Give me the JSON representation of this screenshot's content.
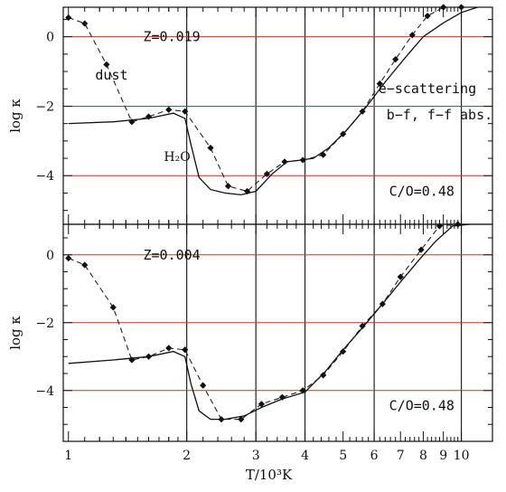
{
  "chart_data": {
    "type": "line",
    "x_scale": "log",
    "xlim": [
      0.97,
      12.0
    ],
    "xlabel": "T/10³K",
    "x_ticks": [
      {
        "v": 1,
        "label": "1"
      },
      {
        "v": 2,
        "label": "2"
      },
      {
        "v": 3,
        "label": "3"
      },
      {
        "v": 4,
        "label": "4"
      },
      {
        "v": 5,
        "label": "5"
      },
      {
        "v": 6,
        "label": "6"
      },
      {
        "v": 7,
        "label": "7"
      },
      {
        "v": 8,
        "label": "8"
      },
      {
        "v": 9,
        "label": "9"
      },
      {
        "v": 10,
        "label": "10"
      }
    ],
    "vlines": [
      2,
      3,
      4,
      6,
      10
    ],
    "panels": [
      {
        "ylabel": "log κ",
        "ylim": [
          -5.4,
          0.85
        ],
        "y_ticks": [
          {
            "v": 0,
            "label": "0"
          },
          {
            "v": -2,
            "label": "−2"
          },
          {
            "v": -4,
            "label": "−4"
          }
        ],
        "hlines": [
          0,
          -2,
          -4
        ],
        "annotations": [
          {
            "text": "Z=0.019",
            "x": 1.55,
            "y": 0.0
          },
          {
            "text": "dust",
            "x": 1.17,
            "y": -1.1
          },
          {
            "text": "e−scattering",
            "x": 6.15,
            "y": -1.5
          },
          {
            "text": "b−f, f−f abs.",
            "x": 6.45,
            "y": -2.25
          },
          {
            "text": "C/O=0.48",
            "x": 6.55,
            "y": -4.45
          }
        ],
        "h2o_label": {
          "text": "H₂O",
          "x": 1.75,
          "y": -3.45
        },
        "series": [
          {
            "style": "dashed-markers",
            "x": [
              1.0,
              1.1,
              1.25,
              1.45,
              1.6,
              1.8,
              1.98,
              2.3,
              2.55,
              2.85,
              3.2,
              3.55,
              3.95,
              4.45,
              5.0,
              5.6,
              6.2,
              6.8,
              7.5,
              8.2,
              9.0,
              10.0
            ],
            "y": [
              0.55,
              0.38,
              -0.8,
              -2.45,
              -2.3,
              -2.1,
              -2.15,
              -3.2,
              -4.3,
              -4.45,
              -3.95,
              -3.6,
              -3.55,
              -3.4,
              -2.8,
              -2.15,
              -1.35,
              -0.65,
              0.05,
              0.6,
              0.85,
              0.85
            ]
          },
          {
            "style": "solid",
            "x": [
              1.0,
              1.3,
              1.6,
              1.85,
              1.98,
              2.05,
              2.15,
              2.3,
              2.5,
              2.75,
              3.0,
              3.3,
              3.6,
              3.9,
              4.2,
              4.6,
              5.1,
              5.7,
              6.4,
              7.2,
              8.0,
              9.0,
              10.0,
              11.0
            ],
            "y": [
              -2.5,
              -2.45,
              -2.35,
              -2.2,
              -2.35,
              -3.1,
              -4.05,
              -4.4,
              -4.5,
              -4.55,
              -4.45,
              -3.95,
              -3.6,
              -3.55,
              -3.5,
              -3.2,
              -2.7,
              -2.05,
              -1.3,
              -0.6,
              0.0,
              0.4,
              0.7,
              0.85
            ]
          }
        ]
      },
      {
        "ylabel": "log κ",
        "ylim": [
          -5.5,
          0.9
        ],
        "y_ticks": [
          {
            "v": 0,
            "label": "0"
          },
          {
            "v": -2,
            "label": "−2"
          },
          {
            "v": -4,
            "label": "−4"
          }
        ],
        "hlines": [
          0,
          -2,
          -4
        ],
        "annotations": [
          {
            "text": "Z=0.004",
            "x": 1.55,
            "y": 0.0
          },
          {
            "text": "C/O=0.48",
            "x": 6.55,
            "y": -4.45
          }
        ],
        "series": [
          {
            "style": "dashed-markers",
            "x": [
              1.0,
              1.1,
              1.3,
              1.45,
              1.6,
              1.8,
              1.98,
              2.2,
              2.45,
              2.75,
              3.1,
              3.5,
              3.95,
              4.45,
              5.0,
              5.6,
              6.3,
              7.0,
              7.9,
              8.8,
              9.8
            ],
            "y": [
              -0.1,
              -0.3,
              -1.55,
              -3.1,
              -3.0,
              -2.75,
              -2.8,
              -3.85,
              -4.85,
              -4.85,
              -4.4,
              -4.2,
              -4.0,
              -3.55,
              -2.85,
              -2.1,
              -1.45,
              -0.65,
              0.15,
              0.85,
              0.9
            ]
          },
          {
            "style": "solid",
            "x": [
              1.0,
              1.3,
              1.6,
              1.85,
              1.98,
              2.05,
              2.15,
              2.3,
              2.5,
              2.8,
              3.1,
              3.5,
              4.0,
              4.5,
              5.0,
              5.6,
              6.3,
              7.0,
              7.8,
              8.6,
              9.5,
              10.5
            ],
            "y": [
              -3.2,
              -3.1,
              -3.0,
              -2.85,
              -3.0,
              -3.8,
              -4.6,
              -4.85,
              -4.85,
              -4.75,
              -4.5,
              -4.25,
              -4.05,
              -3.45,
              -2.8,
              -2.15,
              -1.45,
              -0.8,
              -0.15,
              0.4,
              0.85,
              0.9
            ]
          }
        ]
      }
    ]
  }
}
